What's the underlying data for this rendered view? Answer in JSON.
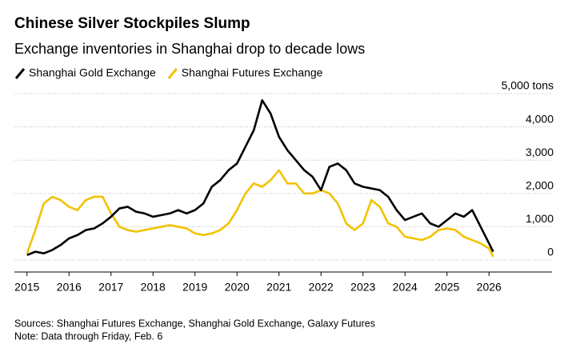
{
  "chart_data": {
    "type": "line",
    "title": "Chinese Silver Stockpiles Slump",
    "subtitle": "Exchange inventories in Shanghai drop to decade lows",
    "sources": "Sources: Shanghai Futures Exchange, Shanghai Gold Exchange, Galaxy Futures",
    "note": "Note: Data through Friday, Feb. 6",
    "x": [
      2015.0,
      2015.2,
      2015.4,
      2015.6,
      2015.8,
      2016.0,
      2016.2,
      2016.4,
      2016.6,
      2016.8,
      2017.0,
      2017.2,
      2017.4,
      2017.6,
      2017.8,
      2018.0,
      2018.2,
      2018.4,
      2018.6,
      2018.8,
      2019.0,
      2019.2,
      2019.4,
      2019.6,
      2019.8,
      2020.0,
      2020.2,
      2020.4,
      2020.6,
      2020.8,
      2021.0,
      2021.2,
      2021.4,
      2021.6,
      2021.8,
      2022.0,
      2022.2,
      2022.4,
      2022.6,
      2022.8,
      2023.0,
      2023.2,
      2023.4,
      2023.6,
      2023.8,
      2024.0,
      2024.2,
      2024.4,
      2024.6,
      2024.8,
      2025.0,
      2025.2,
      2025.4,
      2025.6,
      2025.8,
      2026.0,
      2026.1
    ],
    "series": [
      {
        "name": "Shanghai Gold Exchange",
        "color": "#000000",
        "values": [
          150,
          250,
          200,
          300,
          450,
          650,
          750,
          900,
          950,
          1100,
          1300,
          1550,
          1600,
          1450,
          1400,
          1300,
          1350,
          1400,
          1500,
          1400,
          1500,
          1700,
          2200,
          2400,
          2700,
          2900,
          3400,
          3900,
          4800,
          4400,
          3700,
          3300,
          3000,
          2700,
          2500,
          2100,
          2800,
          2900,
          2700,
          2300,
          2200,
          2150,
          2100,
          1900,
          1500,
          1200,
          1300,
          1400,
          1100,
          1000,
          1200,
          1400,
          1300,
          1500,
          1000,
          500,
          250
        ]
      },
      {
        "name": "Shanghai Futures Exchange",
        "color": "#f2c200",
        "values": [
          200,
          900,
          1700,
          1900,
          1800,
          1600,
          1500,
          1800,
          1900,
          1900,
          1400,
          1000,
          900,
          850,
          900,
          950,
          1000,
          1050,
          1000,
          950,
          800,
          750,
          800,
          900,
          1100,
          1500,
          2000,
          2300,
          2200,
          2400,
          2700,
          2300,
          2300,
          2000,
          2000,
          2100,
          2000,
          1700,
          1100,
          900,
          1100,
          1800,
          1600,
          1100,
          1000,
          700,
          650,
          600,
          700,
          900,
          950,
          900,
          700,
          600,
          500,
          350,
          100
        ]
      }
    ],
    "xlim": [
      2014.7,
      2027.5
    ],
    "xticks": [
      2015,
      2016,
      2017,
      2018,
      2019,
      2020,
      2021,
      2022,
      2023,
      2024,
      2025,
      2026
    ],
    "ylim": [
      -360,
      5000
    ],
    "yticks": [
      0,
      {
        "value": 1000,
        "label": "1,000"
      },
      {
        "value": 2000,
        "label": "2,000"
      },
      {
        "value": 3000,
        "label": "3,000"
      },
      {
        "value": 4000,
        "label": "4,000"
      },
      {
        "value": 5000,
        "label": "5,000 tons"
      }
    ],
    "grid": true
  }
}
